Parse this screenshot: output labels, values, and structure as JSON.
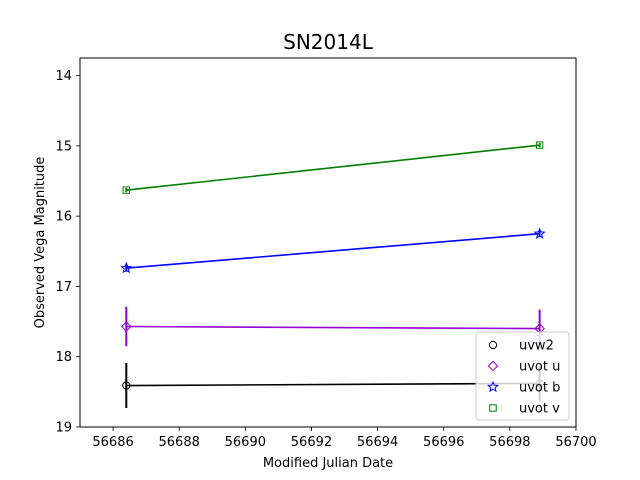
{
  "chart_data": {
    "type": "line",
    "title": "SN2014L",
    "xlabel": "Modified Julian Date",
    "ylabel": "Observed Vega Magnitude",
    "xlim": [
      56685,
      56700
    ],
    "ylim": [
      19,
      13.75
    ],
    "y_inverted": true,
    "xticks": [
      56686,
      56688,
      56690,
      56692,
      56694,
      56696,
      56698,
      56700
    ],
    "yticks": [
      14,
      15,
      16,
      17,
      18,
      19
    ],
    "grid": false,
    "legend_position": "lower-right",
    "series": [
      {
        "name": "uvw2",
        "color": "#000000",
        "marker": "circle",
        "x": [
          56686.4,
          56698.9
        ],
        "y": [
          18.41,
          18.38
        ],
        "yerr": [
          0.32,
          0.25
        ]
      },
      {
        "name": "uvot u",
        "color": "#9400d3",
        "marker": "diamond",
        "x": [
          56686.4,
          56698.9
        ],
        "y": [
          17.57,
          17.6
        ],
        "yerr": [
          0.28,
          0.27
        ]
      },
      {
        "name": "uvot b",
        "color": "#0000ff",
        "marker": "star",
        "x": [
          56686.4,
          56698.9
        ],
        "y": [
          16.74,
          16.25
        ],
        "yerr": [
          0.05,
          0.05
        ]
      },
      {
        "name": "uvot v",
        "color": "#008000",
        "marker": "square",
        "x": [
          56686.4,
          56698.9
        ],
        "y": [
          15.63,
          14.99
        ],
        "yerr": [
          0.03,
          0.03
        ]
      }
    ]
  }
}
